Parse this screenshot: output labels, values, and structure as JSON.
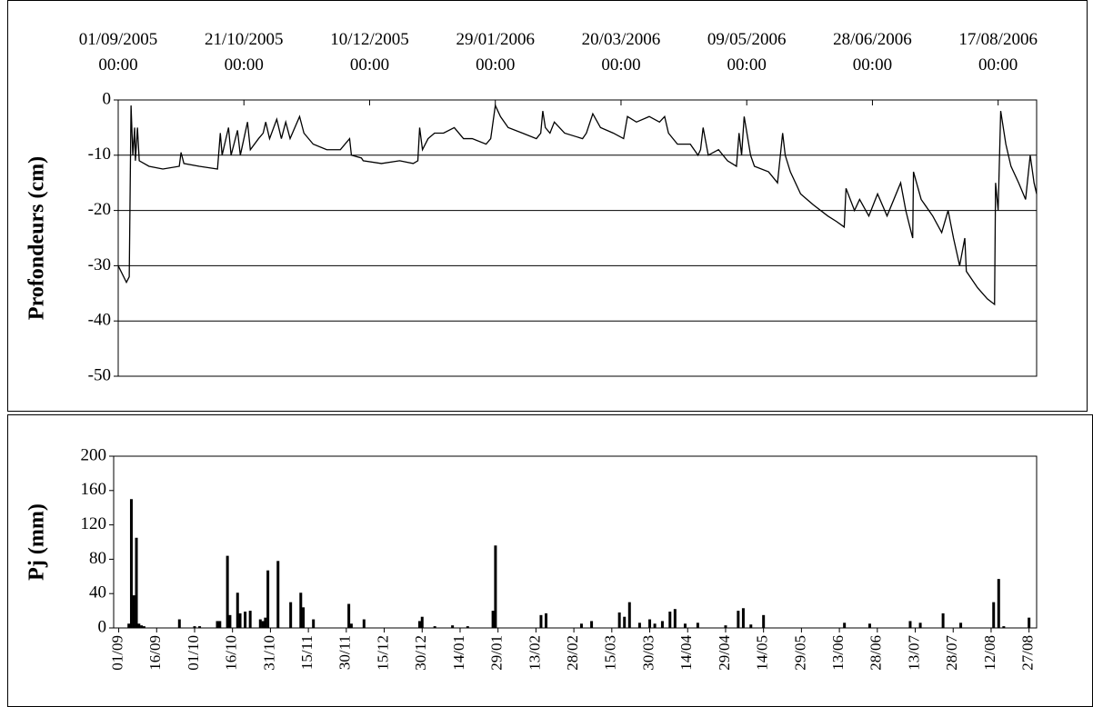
{
  "chart_data": [
    {
      "type": "line",
      "y_label": "Profondeurs (cm)",
      "color": "#000000",
      "grid": true,
      "x": [
        0,
        3.2,
        4.3,
        5,
        5.7,
        6.4,
        6.7,
        7.5,
        8.2,
        12,
        17.4,
        23.8,
        24.5,
        25.6,
        31.6,
        38.7,
        39.8,
        40.5,
        43,
        44,
        46.5,
        47.6,
        50.4,
        51.5,
        54.7,
        56.5,
        57.5,
        59,
        61.8,
        63.6,
        65.3,
        67,
        70.7,
        72.4,
        76,
        81.3,
        86.6,
        90.2,
        90.9,
        94.8,
        95.5,
        102.6,
        109.7,
        115,
        116.8,
        117.5,
        118.6,
        120.8,
        123.3,
        126.8,
        131,
        134.6,
        138,
        143.4,
        145.2,
        147,
        149,
        152,
        157.6,
        163,
        164.7,
        165.5,
        166.5,
        168.3,
        170,
        174,
        181,
        182.5,
        185,
        188,
        193,
        197,
        198.5,
        202,
        207,
        211,
        213,
        214.5,
        218,
        223,
        226,
        227,
        228,
        230,
        234,
        237.5,
        241,
        242,
        243,
        244,
        246.5,
        248,
        253.5,
        257,
        259,
        260,
        262,
        266,
        271,
        276.6,
        280,
        283,
        283.7,
        287,
        289,
        292.6,
        296,
        299.7,
        305,
        307,
        308.6,
        309.7,
        310,
        313,
        317.5,
        321,
        323.5,
        325.6,
        328,
        330,
        330.6,
        335,
        338.8,
        341.6,
        342,
        343,
        344,
        346,
        348,
        351,
        353.7,
        355.5,
        357,
        358
      ],
      "values": [
        -30,
        -33,
        -32,
        -1,
        -10,
        -5,
        -11,
        -5,
        -11,
        -12,
        -12.5,
        -12,
        -9.5,
        -11.5,
        -12,
        -12.5,
        -6,
        -10,
        -5,
        -10,
        -5.5,
        -10,
        -4,
        -9,
        -7,
        -6,
        -4,
        -7,
        -3.5,
        -7,
        -4,
        -7,
        -3,
        -6,
        -8,
        -9,
        -9,
        -7,
        -10,
        -10.5,
        -11,
        -11.5,
        -11,
        -11.5,
        -11,
        -5,
        -9,
        -7,
        -6,
        -6,
        -5,
        -7,
        -7,
        -8,
        -7,
        -1,
        -3,
        -5,
        -6,
        -7,
        -6,
        -2,
        -5,
        -6,
        -4,
        -6,
        -7,
        -6,
        -2.5,
        -5,
        -6,
        -7,
        -3,
        -4,
        -3,
        -4,
        -3,
        -6,
        -8,
        -8,
        -10,
        -9,
        -5,
        -10,
        -9,
        -11,
        -12,
        -6,
        -10,
        -3,
        -10,
        -12,
        -13,
        -15,
        -6,
        -10,
        -13,
        -17,
        -19,
        -21,
        -22,
        -23,
        -16,
        -20,
        -18,
        -21,
        -17,
        -21,
        -15,
        -20,
        -23,
        -25,
        -13,
        -18,
        -21,
        -24,
        -20,
        -25,
        -30,
        -25,
        -31,
        -34,
        -36,
        -37,
        -15,
        -20,
        -2,
        -8,
        -12,
        -15,
        -18,
        -10,
        -15,
        -17
      ],
      "xlim": [
        0,
        358
      ],
      "xticks": [
        {
          "value": 0,
          "label": "01/09/2005\n00:00"
        },
        {
          "value": 49,
          "label": "21/10/2005\n00:00"
        },
        {
          "value": 98,
          "label": "10/12/2005\n00:00"
        },
        {
          "value": 147,
          "label": "29/01/2006\n00:00"
        },
        {
          "value": 196,
          "label": "20/03/2006\n00:00"
        },
        {
          "value": 245,
          "label": "09/05/2006\n00:00"
        },
        {
          "value": 294,
          "label": "28/06/2006\n00:00"
        },
        {
          "value": 343,
          "label": "17/08/2006\n00:00"
        }
      ],
      "ylim": [
        -50,
        0
      ],
      "yticks": [
        0,
        -10,
        -20,
        -30,
        -40,
        -50
      ]
    },
    {
      "type": "bar",
      "y_label": "Pj (mm)",
      "color": "#000000",
      "grid": false,
      "x": [
        4,
        5,
        6,
        7,
        8,
        9,
        10,
        24,
        30,
        32,
        39,
        40,
        43,
        44,
        47,
        48,
        50,
        52,
        56,
        57,
        58,
        59,
        63,
        68,
        72,
        73,
        77,
        91,
        92,
        97,
        119,
        120,
        125,
        132,
        138,
        148,
        149,
        167,
        169,
        183,
        187,
        198,
        200,
        202,
        206,
        210,
        212,
        215,
        218,
        220,
        224,
        229,
        240,
        245,
        247,
        250,
        255,
        287,
        297,
        313,
        317,
        326,
        333,
        346,
        348,
        350,
        360
      ],
      "values": [
        5,
        150,
        38,
        105,
        5,
        3,
        2,
        10,
        2,
        2,
        8,
        8,
        84,
        15,
        41,
        17,
        19,
        20,
        10,
        8,
        12,
        67,
        78,
        30,
        41,
        24,
        10,
        28,
        5,
        10,
        8,
        13,
        2,
        3,
        2,
        20,
        96,
        15,
        17,
        5,
        8,
        18,
        13,
        30,
        6,
        10,
        5,
        8,
        19,
        22,
        5,
        6,
        3,
        20,
        23,
        4,
        15,
        6,
        5,
        8,
        6,
        17,
        6,
        30,
        57,
        2,
        12
      ],
      "xlim": [
        -2,
        363
      ],
      "xticks": [
        {
          "value": 0,
          "label": "01/09"
        },
        {
          "value": 15,
          "label": "16/09"
        },
        {
          "value": 30,
          "label": "01/10"
        },
        {
          "value": 45,
          "label": "16/10"
        },
        {
          "value": 60,
          "label": "31/10"
        },
        {
          "value": 75,
          "label": "15/11"
        },
        {
          "value": 90,
          "label": "30/11"
        },
        {
          "value": 105,
          "label": "15/12"
        },
        {
          "value": 120,
          "label": "30/12"
        },
        {
          "value": 135,
          "label": "14/01"
        },
        {
          "value": 150,
          "label": "29/01"
        },
        {
          "value": 165,
          "label": "13/02"
        },
        {
          "value": 180,
          "label": "28/02"
        },
        {
          "value": 195,
          "label": "15/03"
        },
        {
          "value": 210,
          "label": "30/03"
        },
        {
          "value": 225,
          "label": "14/04"
        },
        {
          "value": 240,
          "label": "29/04"
        },
        {
          "value": 255,
          "label": "14/05"
        },
        {
          "value": 270,
          "label": "29/05"
        },
        {
          "value": 285,
          "label": "13/06"
        },
        {
          "value": 300,
          "label": "28/06"
        },
        {
          "value": 315,
          "label": "13/07"
        },
        {
          "value": 330,
          "label": "28/07"
        },
        {
          "value": 345,
          "label": "12/08"
        },
        {
          "value": 360,
          "label": "27/08"
        }
      ],
      "ylim": [
        0,
        200
      ],
      "yticks": [
        0,
        40,
        80,
        120,
        160,
        200
      ]
    }
  ]
}
